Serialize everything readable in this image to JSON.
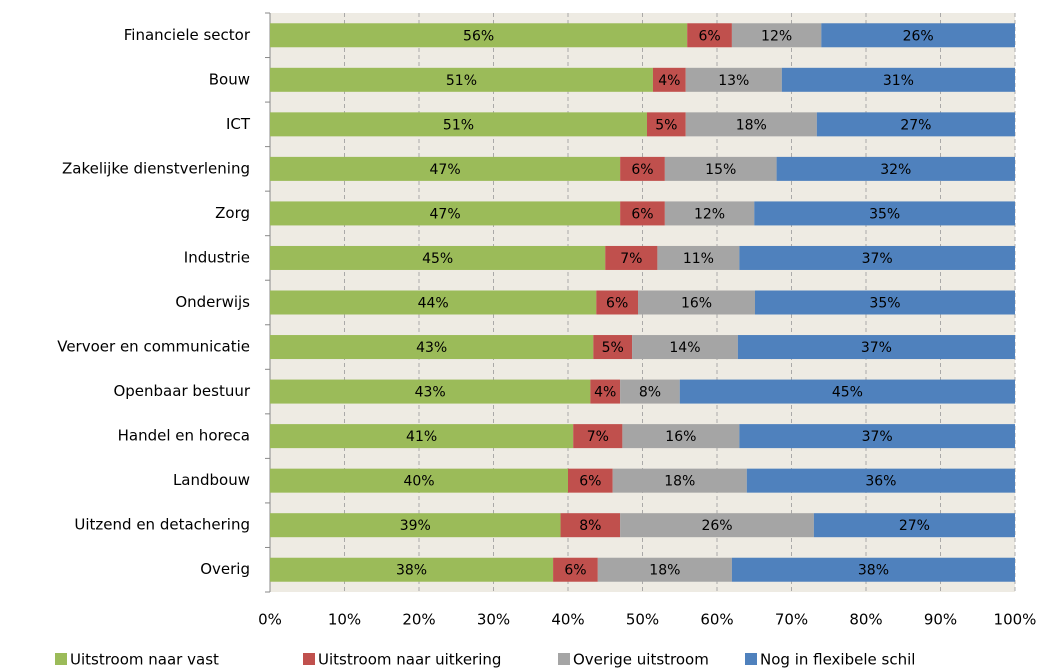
{
  "chart_data": {
    "type": "stacked-barh",
    "categories": [
      "Financiele sector",
      "Bouw",
      "ICT",
      "Zakelijke dienstverlening",
      "Zorg",
      "Industrie",
      "Onderwijs",
      "Vervoer en communicatie",
      "Openbaar bestuur",
      "Handel en horeca",
      "Landbouw",
      "Uitzend en detachering",
      "Overig"
    ],
    "series": [
      {
        "name": "Uitstroom naar vast",
        "color": "#9bbb59",
        "values": [
          56,
          51.4,
          50.6,
          47,
          47,
          45,
          43.8,
          43.4,
          43,
          40.7,
          40,
          39,
          38
        ],
        "value_labels": [
          "56%",
          "51%",
          "51%",
          "47%",
          "47%",
          "45%",
          "44%",
          "43%",
          "43%",
          "41%",
          "40%",
          "39%",
          "38%"
        ]
      },
      {
        "name": "Uitstroom naar uitkering",
        "color": "#c0504d",
        "values": [
          6,
          4.4,
          5.2,
          6,
          6,
          7,
          5.6,
          5.2,
          4,
          6.6,
          6,
          8,
          6
        ],
        "value_labels": [
          "6%",
          "4%",
          "5%",
          "6%",
          "6%",
          "7%",
          "6%",
          "5%",
          "4%",
          "7%",
          "6%",
          "8%",
          "6%"
        ]
      },
      {
        "name": "Overige uitstroom",
        "color": "#a5a5a5",
        "values": [
          12,
          12.9,
          17.6,
          15,
          12,
          11,
          15.7,
          14.2,
          8,
          15.7,
          18,
          26,
          18
        ],
        "value_labels": [
          "12%",
          "13%",
          "18%",
          "15%",
          "12%",
          "11%",
          "16%",
          "14%",
          "8%",
          "16%",
          "18%",
          "26%",
          "18%"
        ]
      },
      {
        "name": "Nog in flexibele schil",
        "color": "#4f81bd",
        "values": [
          26,
          31.3,
          26.6,
          32,
          35,
          37,
          34.9,
          37.2,
          45,
          37,
          36,
          27,
          38
        ],
        "value_labels": [
          "26%",
          "31%",
          "27%",
          "32%",
          "35%",
          "37%",
          "35%",
          "37%",
          "45%",
          "37%",
          "36%",
          "27%",
          "38%"
        ]
      }
    ],
    "xlim": [
      0,
      100
    ],
    "xticks": [
      {
        "value": 0,
        "label": "0%"
      },
      {
        "value": 10,
        "label": "10%"
      },
      {
        "value": 20,
        "label": "20%"
      },
      {
        "value": 30,
        "label": "30%"
      },
      {
        "value": 40,
        "label": "40%"
      },
      {
        "value": 50,
        "label": "50%"
      },
      {
        "value": 60,
        "label": "60%"
      },
      {
        "value": 70,
        "label": "70%"
      },
      {
        "value": 80,
        "label": "80%"
      },
      {
        "value": 90,
        "label": "90%"
      },
      {
        "value": 100,
        "label": "100%"
      }
    ],
    "grid": true,
    "legend": "bottom"
  }
}
